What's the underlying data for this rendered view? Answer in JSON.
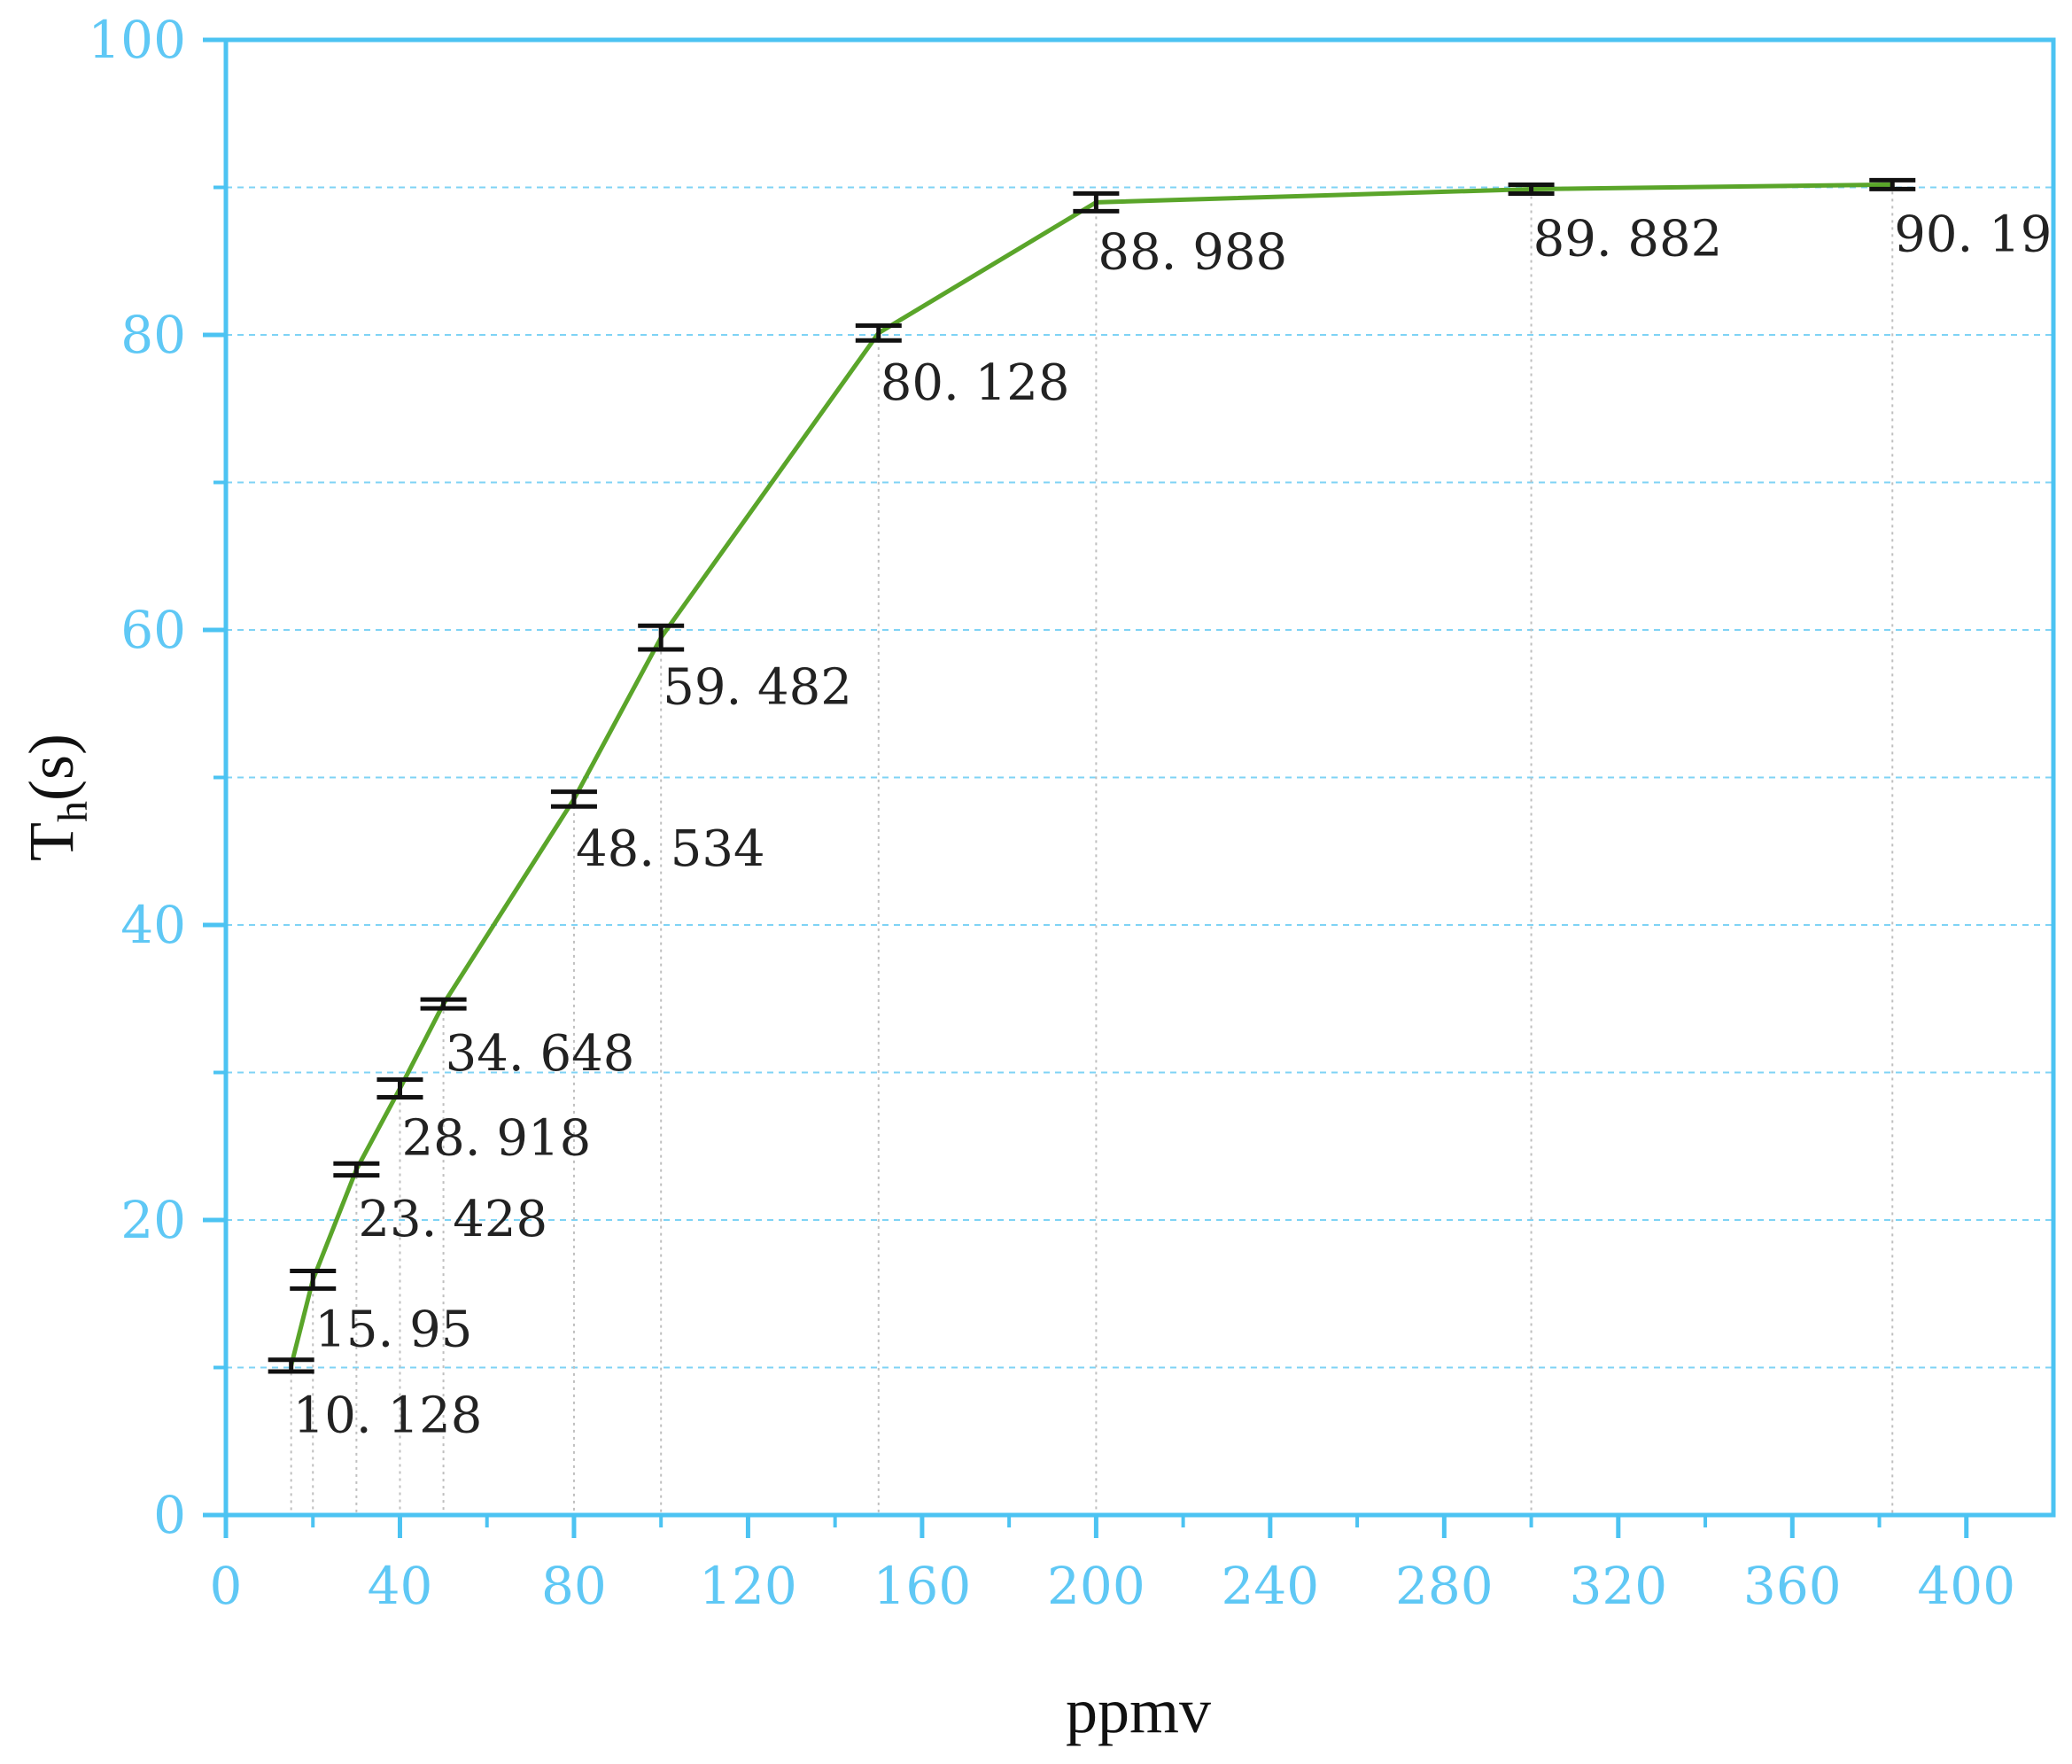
{
  "colors": {
    "axis": "#4cc3f2",
    "grid": "#7fd3f5",
    "tick_label": "#5fc8f5",
    "line": "#5aa52a",
    "error_bar": "#111111",
    "drop_line": "#bfbfbf",
    "data_label": "#222222"
  },
  "chart_data": {
    "type": "line",
    "xlabel": "ppmv",
    "ylabel_main": "T",
    "ylabel_sub": "h",
    "ylabel_suffix": "(s)",
    "xlim": [
      0,
      420
    ],
    "ylim": [
      0,
      100
    ],
    "x_ticks": [
      "0",
      "40",
      "80",
      "120",
      "160",
      "200",
      "240",
      "280",
      "320",
      "360",
      "400"
    ],
    "y_ticks": [
      "0",
      "20",
      "40",
      "60",
      "80",
      "100"
    ],
    "x_minor_step": 20,
    "y_minor_step": 10,
    "grid": true,
    "series": [
      {
        "x": [
          15,
          20,
          30,
          40,
          50,
          80,
          100,
          150,
          200,
          300,
          383
        ],
        "values": [
          10.128,
          15.95,
          23.428,
          28.918,
          34.648,
          48.534,
          59.482,
          80.128,
          88.988,
          89.882,
          90.19
        ],
        "error": [
          0.4,
          0.6,
          0.4,
          0.6,
          0.3,
          0.5,
          0.8,
          0.5,
          0.6,
          0.3,
          0.3
        ],
        "labels": [
          "10. 128",
          "15. 95",
          "23. 428",
          "28. 918",
          "34. 648",
          "48. 534",
          "59. 482",
          "80. 128",
          "88. 988",
          "89. 882",
          "90. 19"
        ]
      }
    ]
  }
}
